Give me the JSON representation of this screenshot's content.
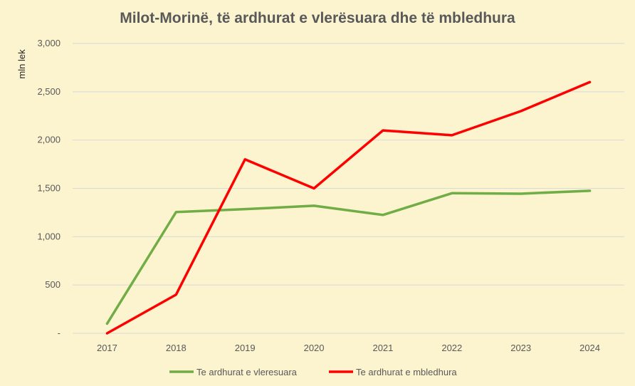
{
  "chart_data": {
    "type": "line",
    "title": "Milot-Morinë, të ardhurat e vlerësuara dhe të mbledhura",
    "ylabel": "mln lek",
    "xlabel": "",
    "categories": [
      "2017",
      "2018",
      "2019",
      "2020",
      "2021",
      "2022",
      "2023",
      "2024"
    ],
    "y_tick_labels": [
      "-",
      "500",
      "1,000",
      "1,500",
      "2,000",
      "2,500",
      "3,000"
    ],
    "y_ticks": [
      0,
      500,
      1000,
      1500,
      2000,
      2500,
      3000
    ],
    "ylim": [
      0,
      3000
    ],
    "grid": true,
    "legend_position": "bottom",
    "series": [
      {
        "name": "Te ardhurat e vleresuara",
        "color": "#70ad47",
        "values": [
          100,
          1255,
          1285,
          1320,
          1225,
          1450,
          1445,
          1475
        ]
      },
      {
        "name": "Te ardhurat e mbledhura",
        "color": "#ff0000",
        "values": [
          0,
          400,
          1800,
          1500,
          2100,
          2050,
          2300,
          2600
        ]
      }
    ]
  }
}
